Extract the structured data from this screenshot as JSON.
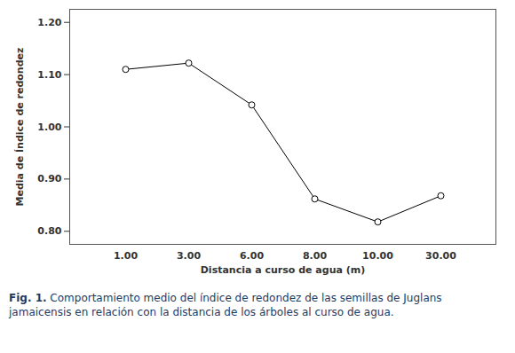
{
  "chart_data": {
    "type": "line",
    "x_label": "Distancia a curso de agua (m)",
    "y_label": "Media de Índice de redondez",
    "categories": [
      "1.00",
      "3.00",
      "6.00",
      "8.00",
      "10.00",
      "30.00"
    ],
    "values": [
      1.11,
      1.122,
      1.042,
      0.862,
      0.818,
      0.868
    ],
    "color": "#000000",
    "marker": "circle",
    "line_style": "solid",
    "ylim": [
      0.775,
      1.225
    ],
    "yticks": [
      {
        "value": 0.8,
        "label": "0.80"
      },
      {
        "value": 0.9,
        "label": "0.90"
      },
      {
        "value": 1.0,
        "label": "1.00"
      },
      {
        "value": 1.1,
        "label": "1.10"
      },
      {
        "value": 1.2,
        "label": "1.20"
      }
    ],
    "grid": false,
    "caption_label": "Fig. 1.",
    "caption": "Comportamiento medio del índice de redondez de las semillas de Juglans jamaicensis en relación con la distancia de los árboles al curso de agua."
  }
}
